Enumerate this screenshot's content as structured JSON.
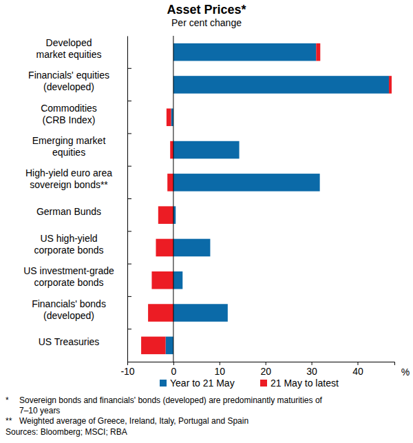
{
  "chart_data": {
    "type": "bar",
    "orientation": "horizontal",
    "stacked": true,
    "grid": false,
    "legend": "bottom",
    "title": "Asset Prices*",
    "subtitle": "Per cent change",
    "xlabel": "%",
    "categories": [
      "Developed\nmarket equities",
      "Financials' equities\n(developed)",
      "Commodities\n(CRB Index)",
      "Emerging market\nequities",
      "High-yield euro area\nsovereign bonds**",
      "German Bunds",
      "US high-yield\ncorporate bonds",
      "US investment-grade\ncorporate bonds",
      "Financials' bonds\n(developed)",
      "US Treasuries"
    ],
    "series": [
      {
        "name": "Year to 21 May",
        "color": "#0b6aa8",
        "values": [
          31.0,
          46.8,
          -0.5,
          14.3,
          31.8,
          0.5,
          8.0,
          2.0,
          11.8,
          -1.7
        ]
      },
      {
        "name": "21 May to latest",
        "color": "#ec1c24",
        "values": [
          0.9,
          0.6,
          -1.0,
          -0.7,
          -1.3,
          -3.3,
          -3.8,
          -4.7,
          -5.5,
          -5.3
        ]
      }
    ],
    "xlim": [
      -10,
      48
    ],
    "xticks": [
      -10,
      0,
      10,
      20,
      30,
      40
    ],
    "notes": [
      {
        "marker": "*",
        "lines": [
          "Sovereign bonds and financials' bonds (developed) are predominantly maturities of",
          "7–10 years"
        ]
      },
      {
        "marker": "**",
        "lines": [
          "Weighted average of Greece, Ireland, Italy, Portugal and Spain"
        ]
      }
    ],
    "source": "Sources: Bloomberg; MSCI; RBA"
  }
}
